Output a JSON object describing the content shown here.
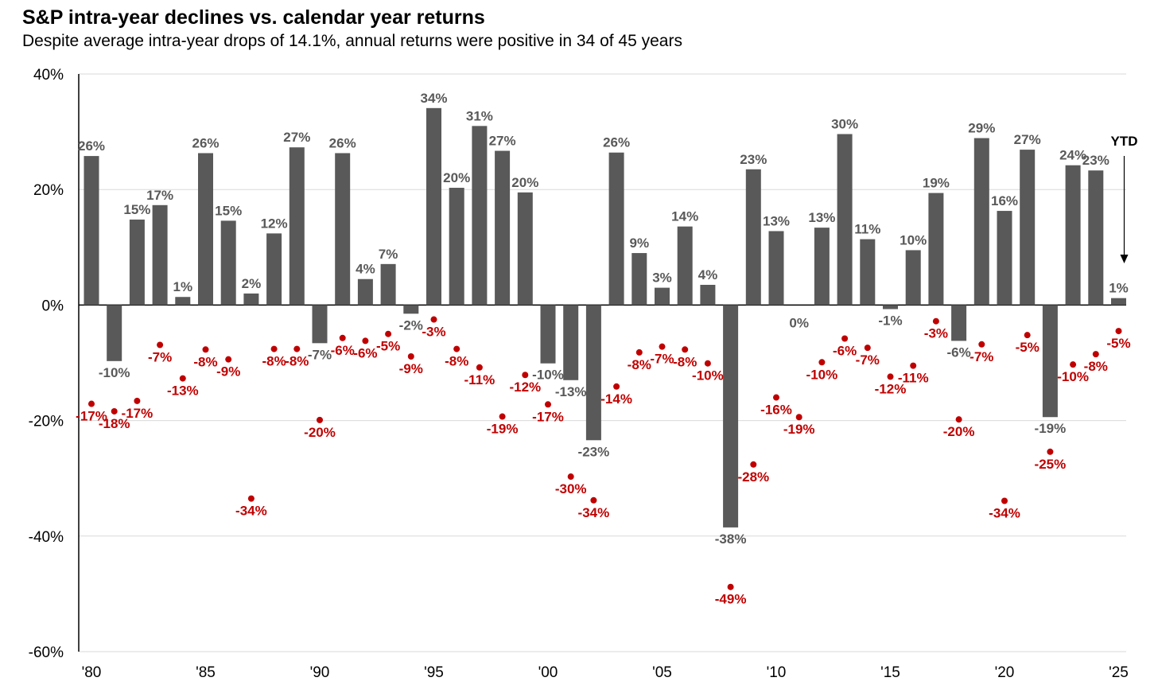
{
  "title": "S&P intra-year declines vs. calendar year returns",
  "subtitle": "Despite average intra-year drops of 14.1%, annual returns were positive in 34 of 45 years",
  "ytd_label": "YTD",
  "colors": {
    "bar": "#595959",
    "drawdown": "#C00000",
    "grid": "#D9D9D9",
    "axis": "#000000"
  },
  "chart_data": {
    "type": "bar",
    "title": "S&P intra-year declines vs. calendar year returns",
    "ylim": [
      -60,
      40
    ],
    "yticks": [
      40,
      20,
      0,
      -20,
      -40,
      -60
    ],
    "ytick_labels": [
      "40%",
      "20%",
      "0%",
      "-20%",
      "-40%",
      "-60%"
    ],
    "xtick_years": [
      1980,
      1985,
      1990,
      1995,
      2000,
      2005,
      2010,
      2015,
      2020,
      2025
    ],
    "xtick_labels": [
      "'80",
      "'85",
      "'90",
      "'95",
      "'00",
      "'05",
      "'10",
      "'15",
      "'20",
      "'25"
    ],
    "grid": true,
    "years": [
      1980,
      1981,
      1982,
      1983,
      1984,
      1985,
      1986,
      1987,
      1988,
      1989,
      1990,
      1991,
      1992,
      1993,
      1994,
      1995,
      1996,
      1997,
      1998,
      1999,
      2000,
      2001,
      2002,
      2003,
      2004,
      2005,
      2006,
      2007,
      2008,
      2009,
      2010,
      2011,
      2012,
      2013,
      2014,
      2015,
      2016,
      2017,
      2018,
      2019,
      2020,
      2021,
      2022,
      2023,
      2024,
      2025
    ],
    "series": [
      {
        "values": [
          25.8,
          -9.7,
          14.8,
          17.3,
          1.4,
          26.3,
          14.6,
          2.0,
          12.4,
          27.3,
          -6.6,
          26.3,
          4.5,
          7.1,
          -1.5,
          34.1,
          20.3,
          31.0,
          26.7,
          19.5,
          -10.1,
          -13.0,
          -23.4,
          26.4,
          9.0,
          3.0,
          13.6,
          3.5,
          -38.5,
          23.5,
          12.8,
          0.0,
          13.4,
          29.6,
          11.4,
          -0.7,
          9.5,
          19.4,
          -6.2,
          28.9,
          16.3,
          26.9,
          -19.4,
          24.2,
          23.3,
          1.2
        ],
        "labels": [
          "26%",
          "-10%",
          "15%",
          "17%",
          "1%",
          "26%",
          "15%",
          "2%",
          "12%",
          "27%",
          "-7%",
          "26%",
          "4%",
          "7%",
          "-2%",
          "34%",
          "20%",
          "31%",
          "27%",
          "20%",
          "-10%",
          "-13%",
          "-23%",
          "26%",
          "9%",
          "3%",
          "14%",
          "4%",
          "-38%",
          "23%",
          "13%",
          "0%",
          "13%",
          "30%",
          "11%",
          "-1%",
          "10%",
          "19%",
          "-6%",
          "29%",
          "16%",
          "27%",
          "-19%",
          "24%",
          "23%",
          "1%"
        ]
      },
      {
        "values": [
          -17.1,
          -18.4,
          -16.6,
          -6.9,
          -12.7,
          -7.7,
          -9.4,
          -33.5,
          -7.6,
          -7.6,
          -19.9,
          -5.7,
          -6.2,
          -5.0,
          -8.9,
          -2.5,
          -7.6,
          -10.8,
          -19.3,
          -12.1,
          -17.2,
          -29.7,
          -33.8,
          -14.1,
          -8.2,
          -7.2,
          -7.7,
          -10.1,
          -48.8,
          -27.6,
          -16.0,
          -19.4,
          -9.9,
          -5.8,
          -7.4,
          -12.4,
          -10.5,
          -2.8,
          -19.8,
          -6.8,
          -33.9,
          -5.2,
          -25.4,
          -10.3,
          -8.5,
          -4.5
        ],
        "labels": [
          "-17%",
          "-18%",
          "-17%",
          "-7%",
          "-13%",
          "-8%",
          "-9%",
          "-34%",
          "-8%",
          "-8%",
          "-20%",
          "-6%",
          "-6%",
          "-5%",
          "-9%",
          "-3%",
          "-8%",
          "-11%",
          "-19%",
          "-12%",
          "-17%",
          "-30%",
          "-34%",
          "-14%",
          "-8%",
          "-7%",
          "-8%",
          "-10%",
          "-49%",
          "-28%",
          "-16%",
          "-19%",
          "-10%",
          "-6%",
          "-7%",
          "-12%",
          "-11%",
          "-3%",
          "-20%",
          "-7%",
          "-34%",
          "-5%",
          "-25%",
          "-10%",
          "-8%",
          "-5%"
        ]
      }
    ]
  }
}
